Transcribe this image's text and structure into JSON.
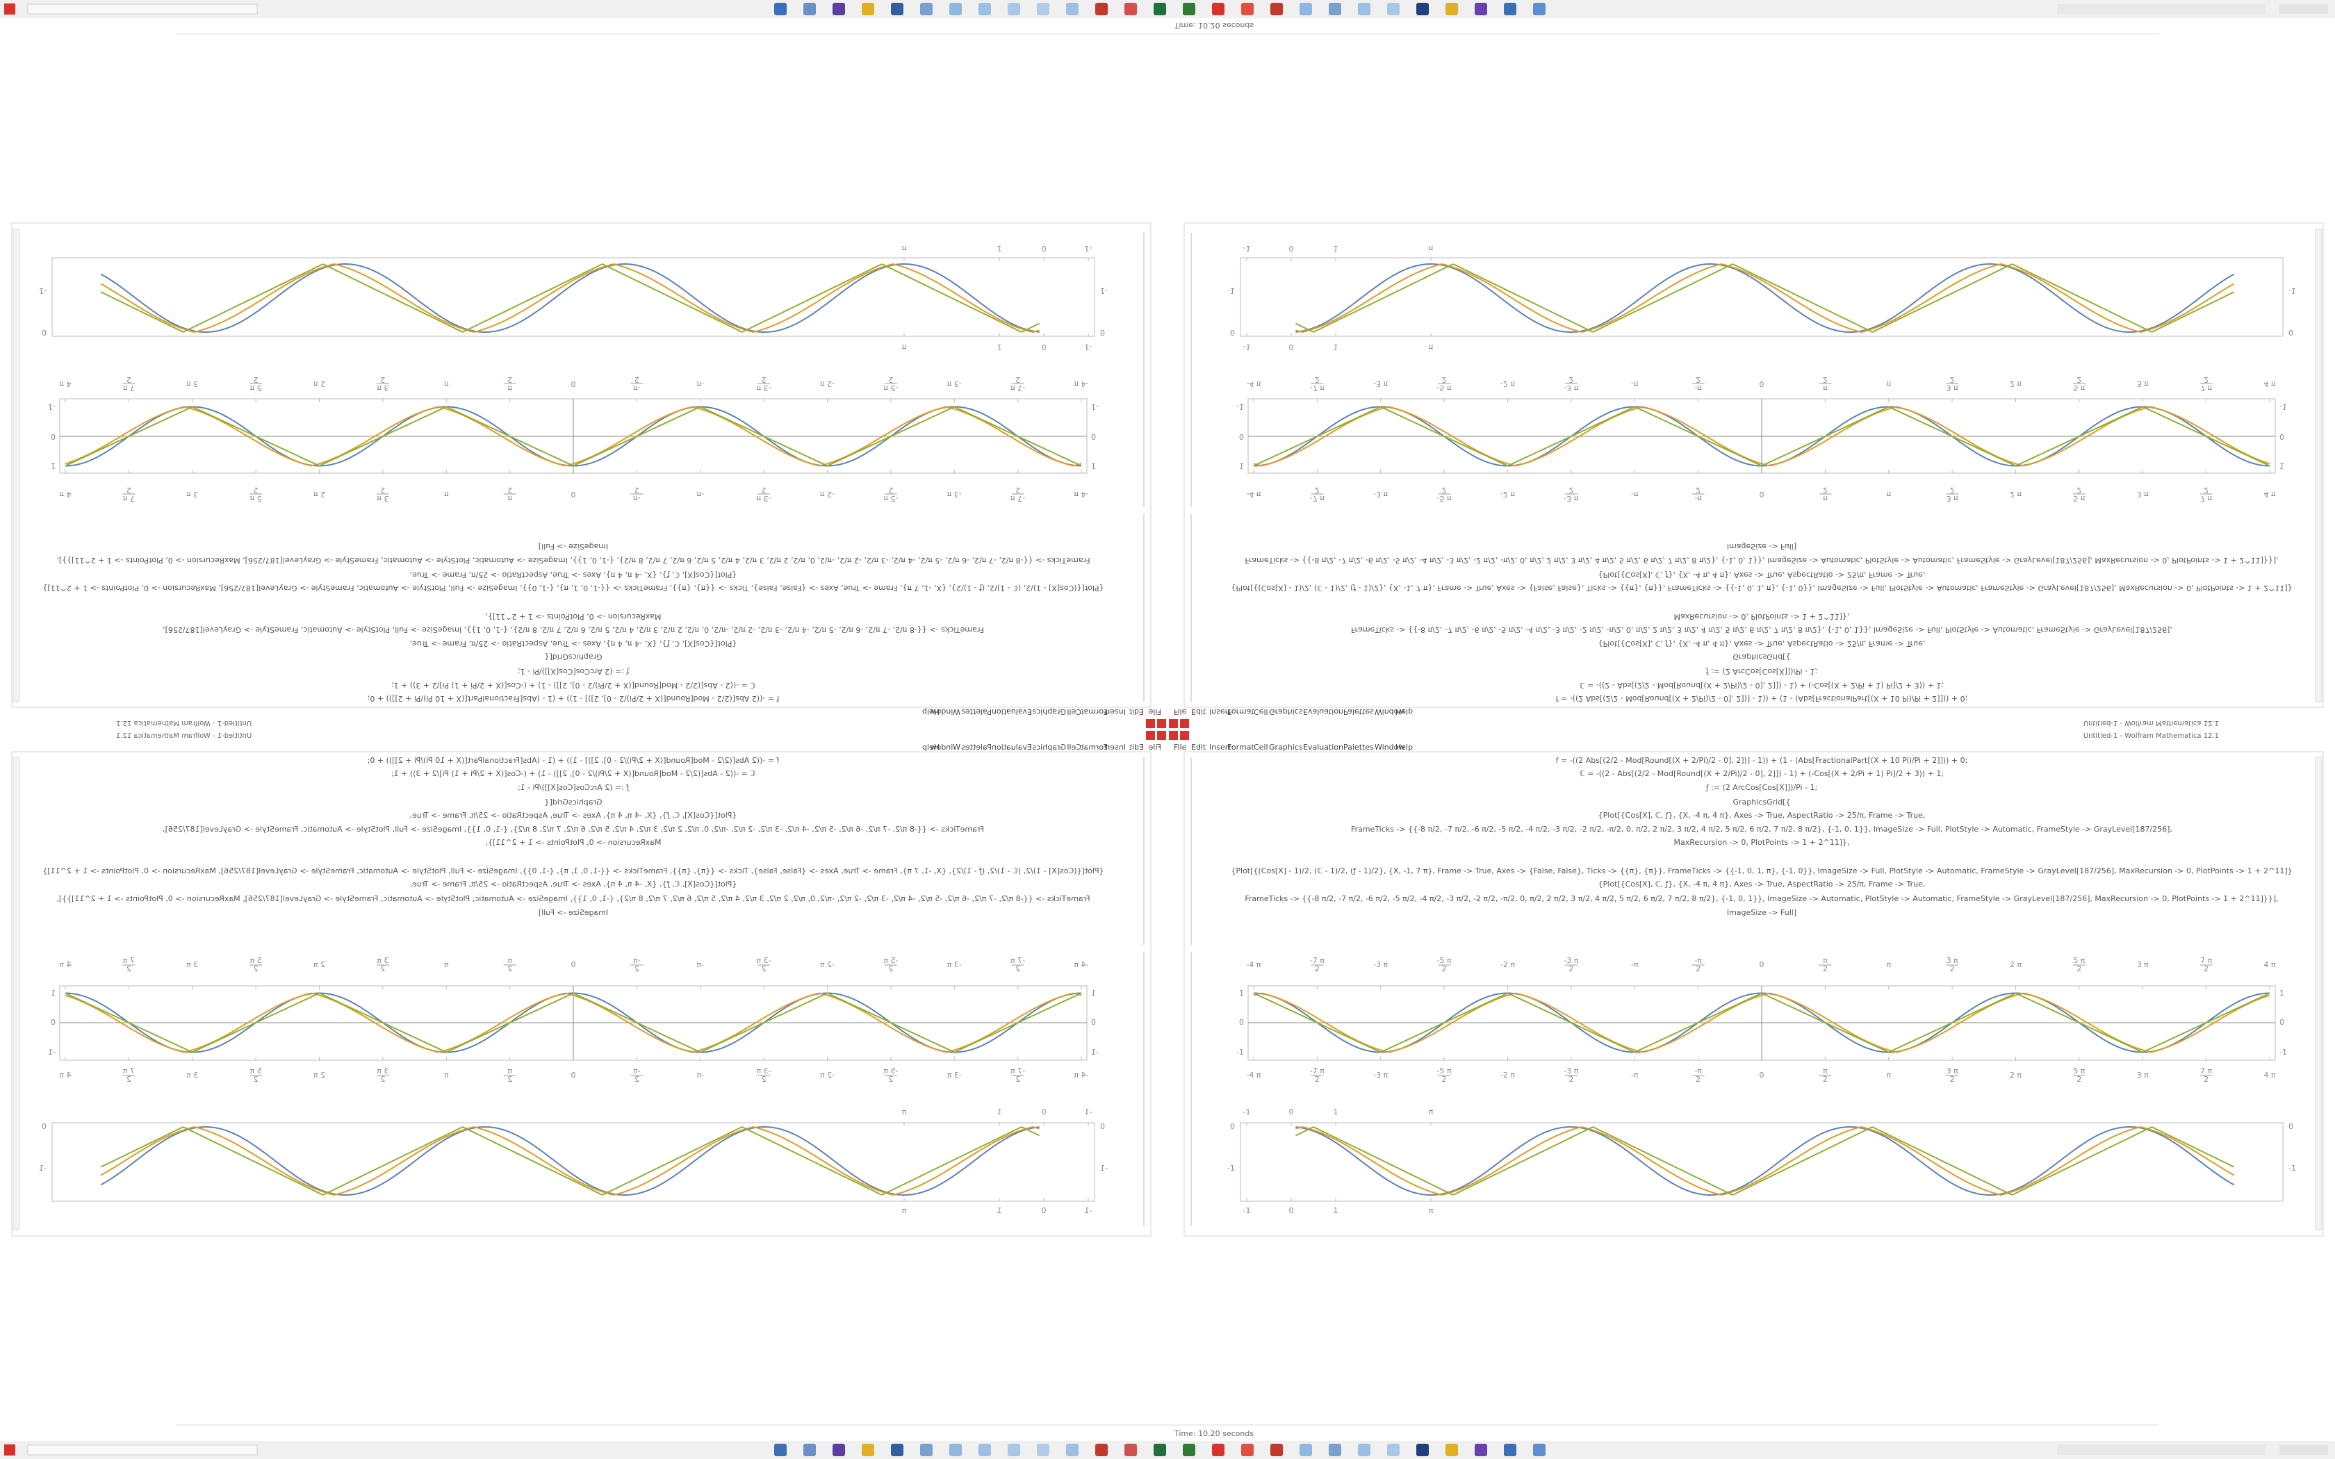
{
  "window": {
    "title": "Untitled-1 - Wolfram Mathematica 12.1",
    "menu": [
      "File",
      "Edit",
      "Insert",
      "Format",
      "Cell",
      "Graphics",
      "Evaluation",
      "Palettes",
      "Window",
      "Help"
    ]
  },
  "status": {
    "text": "Time: 10.20 seconds"
  },
  "notebook": {
    "code_lines": [
      "f = -((2 Abs[(2/2 - Mod[Round[(X + 2/Pi)/2 - 0], 2])] - 1)) + (1 - (Abs[FractionalPart[(X + 10 Pi)/Pi + 2]])) + 0;",
      "ℂ = -((2 - Abs[(2/2 - Mod[Round[(X + 2/Pi)/2 - 0], 2]]) - 1) + (-Cos[(X + 2/Pi + 1) Pi]/2 + 3)) + 1;",
      "ƒ := (2 ArcCos[Cos[X]])/Pi - 1;",
      "GraphicsGrid[{",
      "{Plot[{Cos[X], ℂ, ƒ}, {X, -4 π, 4 π}, Axes -> True, AspectRatio -> 25/π, Frame -> True,",
      "FrameTicks -> {{-8 π/2, -7 π/2, -6 π/2, -5 π/2, -4 π/2, -3 π/2, -2 π/2, -π/2, 0, π/2, 2 π/2, 3 π/2, 4 π/2, 5 π/2, 6 π/2, 7 π/2, 8 π/2}, {-1, 0, 1}}, ImageSize -> Full, PlotStyle -> Automatic, FrameStyle -> GrayLevel[187/256],",
      "MaxRecursion -> 0, PlotPoints -> 1 + 2^11]},",
      "{Plot[{(Cos[X] - 1)/2, (ℂ - 1)/2, (ƒ - 1)/2}, {X, -1, 7 π}, Frame -> True, Axes -> {False, False}, Ticks -> {{π}, {π}}, FrameTicks -> {{-1, 0, 1, π}, {-1, 0}}, ImageSize -> Full, PlotStyle -> Automatic, FrameStyle -> GrayLevel[187/256], MaxRecursion -> 0, PlotPoints -> 1 + 2^11]}",
      "{Plot[{Cos[X], ℂ, ƒ}, {X, -4 π, 4 π}, Axes -> True, AspectRatio -> 25/π, Frame -> True,",
      "FrameTicks -> {{-8 π/2, -7 π/2, -6 π/2, -5 π/2, -4 π/2, -3 π/2, -2 π/2, -π/2, 0, π/2, 2 π/2, 3 π/2, 4 π/2, 5 π/2, 6 π/2, 7 π/2, 8 π/2}, {-1, 0, 1}}, ImageSize -> Automatic, PlotStyle -> Automatic, FrameStyle -> GrayLevel[187/256], MaxRecursion -> 0, PlotPoints -> 1 + 2^11]}}],",
      "ImageSize -> Full]"
    ],
    "wave_plot": {
      "x_ticks": [
        {
          "num": "-4 π"
        },
        {
          "num": "-7 π",
          "den": "2"
        },
        {
          "num": "-3 π"
        },
        {
          "num": "-5 π",
          "den": "2"
        },
        {
          "num": "-2 π"
        },
        {
          "num": "-3 π",
          "den": "2"
        },
        {
          "num": "-π"
        },
        {
          "num": "-π",
          "den": "2"
        },
        {
          "num": "0"
        },
        {
          "num": "π",
          "den": "2"
        },
        {
          "num": "π"
        },
        {
          "num": "3 π",
          "den": "2"
        },
        {
          "num": "2 π"
        },
        {
          "num": "5 π",
          "den": "2"
        },
        {
          "num": "3 π"
        },
        {
          "num": "7 π",
          "den": "2"
        },
        {
          "num": "4 π"
        }
      ],
      "y_ticks": [
        "1",
        "0",
        "-1"
      ]
    },
    "cycle_plot": {
      "x_ticks": [
        "-1",
        "0",
        "1",
        "π"
      ],
      "y_ticks": [
        "0",
        "-1"
      ]
    }
  }
}
